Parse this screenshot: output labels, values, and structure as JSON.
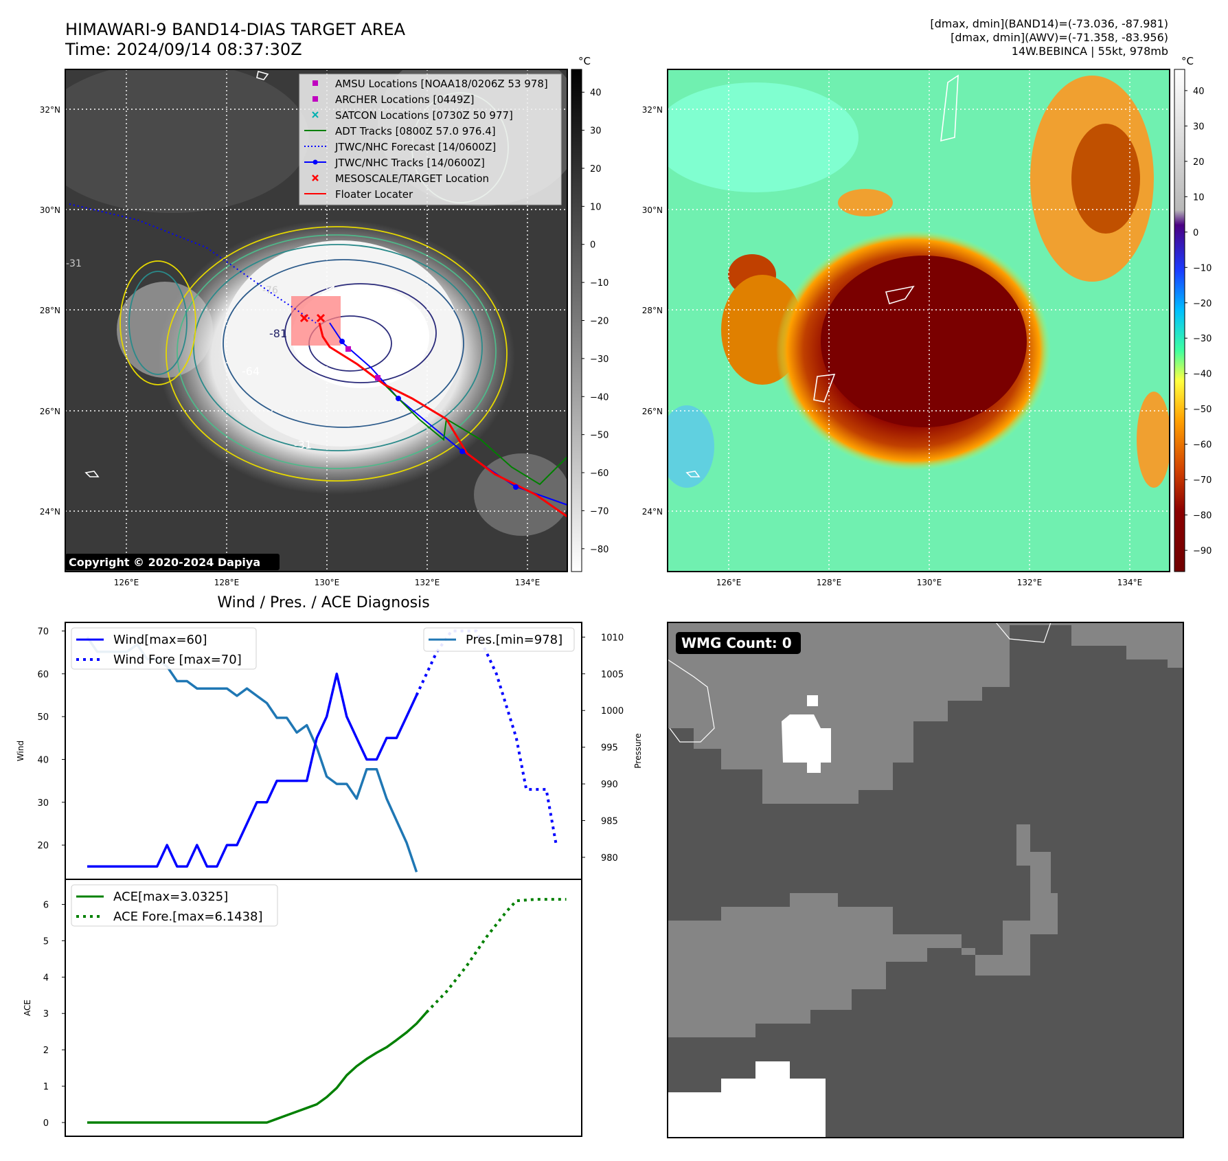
{
  "header": {
    "title_line1": "HIMAWARI-9 BAND14-DIAS TARGET AREA",
    "title_line2": "Time: 2024/09/14 08:37:30Z",
    "info_line1": "[dmax, dmin](BAND14)=(-73.036, -87.981)",
    "info_line2": "[dmax, dmin](AWV)=(-71.358, -83.956)",
    "info_line3": "14W.BEBINCA | 55kt, 978mb"
  },
  "map_ir": {
    "unit_label": "°C",
    "colorbar_ticks": [
      "40",
      "30",
      "20",
      "10",
      "0",
      "−10",
      "−20",
      "−30",
      "−40",
      "−50",
      "−60",
      "−70",
      "−80"
    ],
    "lat_labels": [
      "32°N",
      "30°N",
      "28°N",
      "26°N",
      "24°N"
    ],
    "lon_labels": [
      "126°E",
      "128°E",
      "130°E",
      "132°E",
      "134°E"
    ],
    "copyright": "Copyright © 2020-2024 Dapiya",
    "contour_labels": [
      "-76",
      "-81",
      "-64",
      "-31",
      "-31"
    ],
    "legend": [
      {
        "label": "AMSU Locations [NOAA18/0206Z 53 978]",
        "marker": "square",
        "color": "#c000c0"
      },
      {
        "label": "ARCHER Locations [0449Z]",
        "marker": "square",
        "color": "#c000c0"
      },
      {
        "label": "SATCON Locations [0730Z 50 977]",
        "marker": "x",
        "color": "#00b0b0"
      },
      {
        "label": "ADT Tracks [0800Z 57.0 976.4]",
        "marker": "line",
        "color": "#008000"
      },
      {
        "label": "JTWC/NHC Forecast [14/0600Z]",
        "marker": "dotted",
        "color": "#0000ff"
      },
      {
        "label": "JTWC/NHC Tracks [14/0600Z]",
        "marker": "line-dot",
        "color": "#0000ff"
      },
      {
        "label": "MESOSCALE/TARGET Location",
        "marker": "x",
        "color": "#ff0000"
      },
      {
        "label": "Floater Locater",
        "marker": "line",
        "color": "#ff0000"
      }
    ]
  },
  "map_color": {
    "unit_label": "°C",
    "colorbar_ticks": [
      "40",
      "30",
      "20",
      "10",
      "0",
      "−10",
      "−20",
      "−30",
      "−40",
      "−50",
      "−60",
      "−70",
      "−80",
      "−90"
    ],
    "lat_labels": [
      "32°N",
      "30°N",
      "28°N",
      "26°N",
      "24°N"
    ],
    "lon_labels": [
      "126°E",
      "128°E",
      "130°E",
      "132°E",
      "134°E"
    ]
  },
  "wmg": {
    "label": "WMG Count: 0"
  },
  "chart_data": [
    {
      "type": "line",
      "title": "Wind / Pres. / ACE Diagnosis",
      "ylabel": "Wind",
      "ylabel_right": "Pressure",
      "ylim": [
        12,
        72
      ],
      "ylim_right": [
        977,
        1012
      ],
      "yticks": [
        "20",
        "30",
        "40",
        "50",
        "60",
        "70"
      ],
      "yticks_right": [
        "980",
        "985",
        "990",
        "995",
        "1000",
        "1005",
        "1010"
      ],
      "colors": {
        "wind": "#0000ff",
        "pressure": "#1f77b4"
      },
      "series": [
        {
          "name": "Wind[max=60]",
          "style": "solid",
          "axis": "left",
          "values": [
            15,
            15,
            15,
            15,
            15,
            15,
            15,
            15,
            20,
            15,
            15,
            20,
            15,
            15,
            20,
            20,
            25,
            30,
            30,
            35,
            35,
            35,
            35,
            45,
            50,
            60,
            50,
            45,
            40,
            40,
            45,
            45,
            50,
            55
          ]
        },
        {
          "name": "Wind Fore [max=70]",
          "style": "dotted",
          "axis": "left",
          "x": [
            33,
            35,
            36.5,
            39,
            41,
            43,
            44,
            46,
            47
          ],
          "values": [
            55,
            65,
            70,
            70,
            60,
            45,
            33,
            33,
            20
          ]
        },
        {
          "name": "Pres.[min=978]",
          "style": "solid",
          "axis": "right",
          "values": [
            1010,
            1008,
            1008,
            1008,
            1008,
            1009,
            1007,
            1007,
            1006,
            1004,
            1004,
            1003,
            1003,
            1003,
            1003,
            1002,
            1003,
            1002,
            1001,
            999,
            999,
            997,
            998,
            995,
            991,
            990,
            990,
            988,
            992,
            992,
            988,
            985,
            982,
            978
          ]
        }
      ]
    },
    {
      "type": "line",
      "ylabel": "ACE",
      "ylim": [
        -0.2,
        6.5
      ],
      "yticks": [
        "0",
        "1",
        "2",
        "3",
        "4",
        "5",
        "6"
      ],
      "color": "#008000",
      "series": [
        {
          "name": "ACE[max=3.0325]",
          "style": "solid",
          "values": [
            0,
            0,
            0,
            0,
            0,
            0,
            0,
            0,
            0,
            0,
            0,
            0,
            0,
            0,
            0,
            0,
            0,
            0,
            0,
            0.1,
            0.2,
            0.3,
            0.4,
            0.5,
            0.7,
            0.95,
            1.3,
            1.55,
            1.75,
            1.92,
            2.07,
            2.27,
            2.48,
            2.72,
            3.03
          ]
        },
        {
          "name": "ACE Fore.[max=6.1438]",
          "style": "dotted",
          "x": [
            34,
            36,
            38,
            40,
            42,
            43,
            45,
            48
          ],
          "values": [
            3.03,
            3.6,
            4.3,
            5.1,
            5.8,
            6.1,
            6.14,
            6.14
          ]
        }
      ]
    }
  ]
}
